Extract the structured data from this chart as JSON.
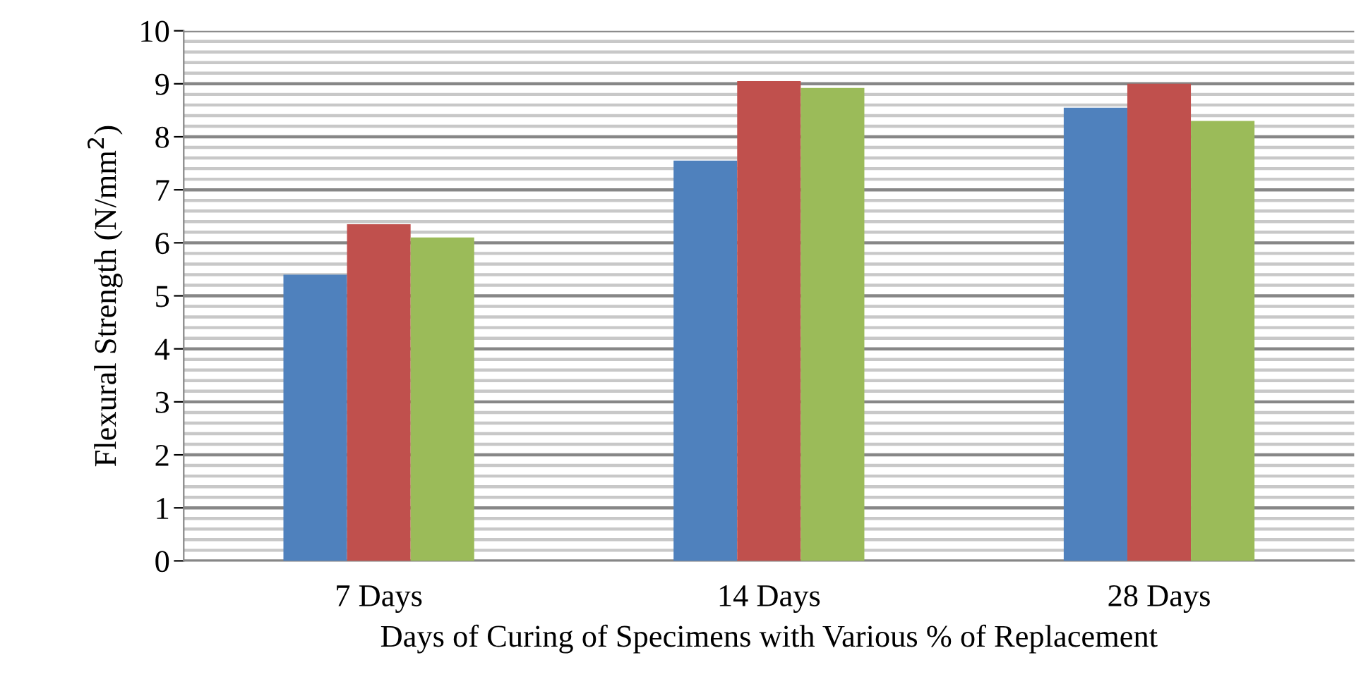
{
  "chart_data": {
    "type": "bar",
    "xlabel": "Days of Curing of Specimens with Various % of Replacement",
    "ylabel": "Flexural Strength (N/mm$^{2}$)",
    "categories": [
      "7 Days",
      "14 Days",
      "28 Days"
    ],
    "series": [
      {
        "color": "#4f81bd",
        "values": [
          5.4,
          7.55,
          8.55
        ]
      },
      {
        "color": "#c0504d",
        "values": [
          6.35,
          9.05,
          9.0
        ]
      },
      {
        "color": "#9bbb59",
        "values": [
          6.1,
          8.92,
          8.3
        ]
      }
    ],
    "ylim": [
      0,
      10
    ],
    "yticks": [
      0,
      {
        "value": 0.2,
        "label": null
      },
      {
        "value": 0.4,
        "label": null
      },
      {
        "value": 0.6,
        "label": null
      },
      {
        "value": 0.8,
        "label": null
      },
      1,
      {
        "value": 1.2,
        "label": null
      },
      {
        "value": 1.4,
        "label": null
      },
      {
        "value": 1.6,
        "label": null
      },
      {
        "value": 1.8,
        "label": null
      },
      2,
      {
        "value": 2.2,
        "label": null
      },
      {
        "value": 2.4,
        "label": null
      },
      {
        "value": 2.6,
        "label": null
      },
      {
        "value": 2.8,
        "label": null
      },
      3,
      {
        "value": 3.2,
        "label": null
      },
      {
        "value": 3.4,
        "label": null
      },
      {
        "value": 3.6,
        "label": null
      },
      {
        "value": 3.8,
        "label": null
      },
      4,
      {
        "value": 4.2,
        "label": null
      },
      {
        "value": 4.4,
        "label": null
      },
      {
        "value": 4.6,
        "label": null
      },
      {
        "value": 4.8,
        "label": null
      },
      5,
      {
        "value": 5.2,
        "label": null
      },
      {
        "value": 5.4,
        "label": null
      },
      {
        "value": 5.6,
        "label": null
      },
      {
        "value": 5.8,
        "label": null
      },
      6,
      {
        "value": 6.2,
        "label": null
      },
      {
        "value": 6.4,
        "label": null
      },
      {
        "value": 6.6,
        "label": null
      },
      {
        "value": 6.8,
        "label": null
      },
      7,
      {
        "value": 7.2,
        "label": null
      },
      {
        "value": 7.4,
        "label": null
      },
      {
        "value": 7.6,
        "label": null
      },
      {
        "value": 7.8,
        "label": null
      },
      8,
      {
        "value": 8.2,
        "label": null
      },
      {
        "value": 8.4,
        "label": null
      },
      {
        "value": 8.6,
        "label": null
      },
      {
        "value": 8.8,
        "label": null
      },
      9,
      {
        "value": 9.2,
        "label": null
      },
      {
        "value": 9.4,
        "label": null
      },
      {
        "value": 9.6,
        "label": null
      },
      {
        "value": 9.8,
        "label": null
      },
      10
    ],
    "grid": "y",
    "legend": false
  }
}
